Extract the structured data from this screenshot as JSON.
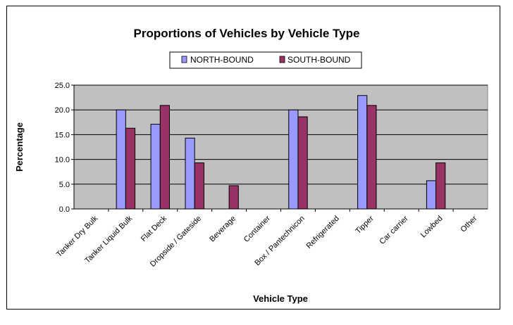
{
  "chart_data": {
    "type": "bar",
    "title": "Proportions of Vehicles by Vehicle Type",
    "xlabel": "Vehicle Type",
    "ylabel": "Percentage",
    "ylim": [
      0,
      25
    ],
    "yticks": [
      "0.0",
      "5.0",
      "10.0",
      "15.0",
      "20.0",
      "25.0"
    ],
    "grid": true,
    "legend_position": "top",
    "categories": [
      "Tanker Dry Bulk",
      "Tanker Liquid Bulk",
      "Flat Deck",
      "Dropside / Gateside",
      "Beverage",
      "Container",
      "Box / Pantechnicon",
      "Refrigerated",
      "Tipper",
      "Car carrier",
      "Lowbed",
      "Other"
    ],
    "series": [
      {
        "name": "NORTH-BOUND",
        "color": "#9999ff",
        "values": [
          0,
          20.0,
          17.1,
          14.3,
          0,
          0,
          20.0,
          0,
          22.9,
          0,
          5.7,
          0
        ]
      },
      {
        "name": "SOUTH-BOUND",
        "color": "#993366",
        "values": [
          0,
          16.3,
          20.9,
          9.3,
          4.7,
          0,
          18.6,
          0,
          20.9,
          0,
          9.3,
          0
        ]
      }
    ],
    "plot_background": "#c0c0c0"
  }
}
